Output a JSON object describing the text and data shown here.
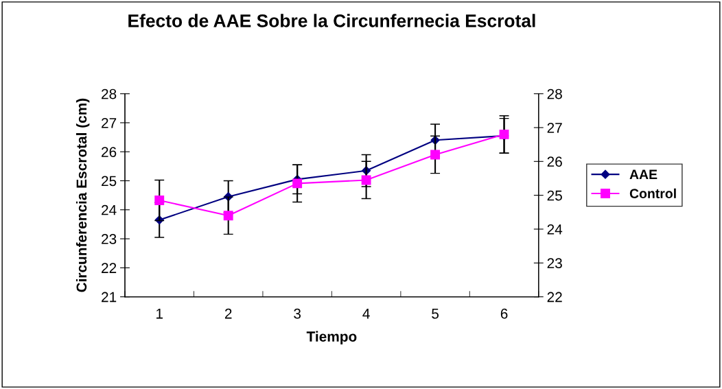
{
  "chart_data": {
    "type": "line",
    "title": "Efecto de AAE Sobre la Circunfernecia Escrotal",
    "xlabel": "Tiempo",
    "ylabel": "Circunferencia Escrotal (cm)",
    "categories": [
      "1",
      "2",
      "3",
      "4",
      "5",
      "6"
    ],
    "series": [
      {
        "name": "AAE",
        "color": "#000080",
        "marker": "diamond",
        "values": [
          23.65,
          24.45,
          25.05,
          25.35,
          26.4,
          26.55
        ],
        "errors": [
          0.6,
          0.55,
          0.5,
          0.55,
          0.55,
          0.6
        ]
      },
      {
        "name": "Control",
        "color": "#ff00ff",
        "marker": "square",
        "axis": "y2",
        "values": [
          24.85,
          24.4,
          25.35,
          25.45,
          26.2,
          26.8
        ],
        "errors": [
          0.6,
          0.55,
          0.55,
          0.55,
          0.55,
          0.55
        ]
      }
    ],
    "ylim": [
      21,
      28
    ],
    "yticks": [
      21,
      22,
      23,
      24,
      25,
      26,
      27,
      28
    ],
    "y2lim": [
      22,
      28
    ],
    "y2ticks": [
      22,
      23,
      24,
      25,
      26,
      27,
      28
    ],
    "grid": false,
    "legend": "right"
  }
}
